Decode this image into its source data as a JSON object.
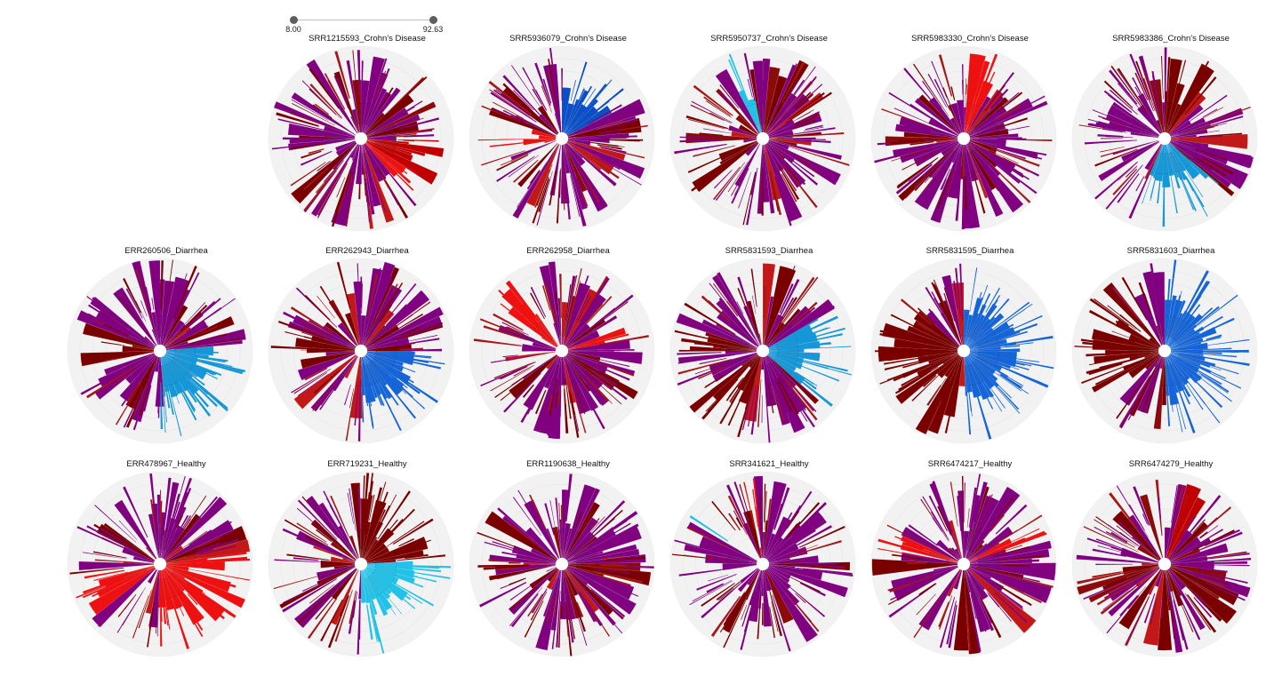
{
  "slider": {
    "min_label": "8.00",
    "max_label": "92.63",
    "min": 8.0,
    "max": 92.63
  },
  "colors": {
    "background_sector": "#f2f2f2",
    "default_sector": "#800080",
    "scale": [
      "#7a0000",
      "#c00000",
      "#ee1111",
      "#0a2fa8",
      "#1565d8",
      "#1597d8",
      "#22c2e8",
      "#8b008b"
    ]
  },
  "rows": [
    {
      "category": "Crohn's Disease",
      "samples": [
        {
          "id": "blank-slot",
          "title": ""
        },
        {
          "id": "SRR1215593",
          "title": "SRR1215593_Crohn's Disease"
        },
        {
          "id": "SRR5936079",
          "title": "SRR5936079_Crohn's Disease"
        },
        {
          "id": "SRR5950737",
          "title": "SRR5950737_Crohn's Disease"
        },
        {
          "id": "SRR5983330",
          "title": "SRR5983330_Crohn's Disease"
        },
        {
          "id": "SRR5983386",
          "title": "SRR5983386_Crohn's Disease"
        }
      ]
    },
    {
      "category": "Diarrhea",
      "samples": [
        {
          "id": "ERR260506",
          "title": "ERR260506_Diarrhea"
        },
        {
          "id": "ERR262943",
          "title": "ERR262943_Diarrhea"
        },
        {
          "id": "ERR262958",
          "title": "ERR262958_Diarrhea"
        },
        {
          "id": "SRR5831593",
          "title": "SRR5831593_Diarrhea"
        },
        {
          "id": "SRR5831595",
          "title": "SRR5831595_Diarrhea"
        },
        {
          "id": "SRR5831603",
          "title": "SRR5831603_Diarrhea"
        }
      ]
    },
    {
      "category": "Healthy",
      "samples": [
        {
          "id": "ERR478967",
          "title": "ERR478967_Healthy"
        },
        {
          "id": "ERR719231",
          "title": "ERR719231_Healthy"
        },
        {
          "id": "ERR1190638",
          "title": "ERR1190638_Healthy"
        },
        {
          "id": "SRR341621",
          "title": "SRR341621_Healthy"
        },
        {
          "id": "SRR6474217",
          "title": "SRR6474217_Healthy"
        },
        {
          "id": "SRR6474279",
          "title": "SRR6474279_Healthy"
        }
      ]
    }
  ],
  "chart_data": {
    "type": "sunburst",
    "note_values": "radial icicle (sunburst) per sample; sector colors encode abundance on the slider scale",
    "scale_range": [
      8.0,
      92.63
    ],
    "panels": [
      {
        "title": "SRR1215593_Crohn's Disease",
        "highlight": [
          {
            "start": 90,
            "end": 120,
            "color": "#c00000"
          },
          {
            "start": 120,
            "end": 140,
            "color": "#ee1111"
          }
        ],
        "blue": []
      },
      {
        "title": "SRR5936079_Crohn's Disease",
        "highlight": [
          {
            "start": 255,
            "end": 290,
            "color": "#ee1111"
          }
        ],
        "blue": [
          {
            "start": 0,
            "end": 60,
            "color": "#0a4fc8"
          }
        ]
      },
      {
        "title": "SRR5950737_Crohn's Disease",
        "highlight": [
          {
            "start": 230,
            "end": 250,
            "color": "#7a0000"
          }
        ],
        "blue": [
          {
            "start": 335,
            "end": 345,
            "color": "#22c2e8"
          }
        ]
      },
      {
        "title": "SRR5983330_Crohn's Disease",
        "highlight": [
          {
            "start": 5,
            "end": 30,
            "color": "#ee1111"
          }
        ],
        "blue": []
      },
      {
        "title": "SRR5983386_Crohn's Disease",
        "highlight": [
          {
            "start": 0,
            "end": 40,
            "color": "#7a0000"
          }
        ],
        "blue": [
          {
            "start": 130,
            "end": 200,
            "color": "#1597d8"
          },
          {
            "start": 150,
            "end": 190,
            "color": "#22c2e8"
          }
        ]
      },
      {
        "title": "ERR260506_Diarrhea",
        "highlight": [
          {
            "start": 260,
            "end": 290,
            "color": "#7a0000"
          }
        ],
        "blue": [
          {
            "start": 90,
            "end": 180,
            "color": "#1597d8"
          },
          {
            "start": 95,
            "end": 130,
            "color": "#22c2e8"
          }
        ]
      },
      {
        "title": "ERR262943_Diarrhea",
        "highlight": [
          {
            "start": 265,
            "end": 290,
            "color": "#7a0000"
          }
        ],
        "blue": [
          {
            "start": 90,
            "end": 180,
            "color": "#1565d8"
          },
          {
            "start": 95,
            "end": 140,
            "color": "#1597d8"
          }
        ]
      },
      {
        "title": "ERR262958_Diarrhea",
        "highlight": [
          {
            "start": 300,
            "end": 330,
            "color": "#ee1111"
          },
          {
            "start": 65,
            "end": 80,
            "color": "#ee1111"
          }
        ],
        "blue": []
      },
      {
        "title": "SRR5831593_Diarrhea",
        "highlight": [
          {
            "start": 200,
            "end": 240,
            "color": "#7a0000"
          },
          {
            "start": 270,
            "end": 290,
            "color": "#7a0000"
          }
        ],
        "blue": [
          {
            "start": 60,
            "end": 130,
            "color": "#1597d8"
          }
        ]
      },
      {
        "title": "SRR5831595_Diarrhea",
        "highlight": [
          {
            "start": 190,
            "end": 300,
            "color": "#7a0000"
          }
        ],
        "blue": [
          {
            "start": 0,
            "end": 180,
            "color": "#1565d8"
          },
          {
            "start": 60,
            "end": 90,
            "color": "#22c2e8"
          }
        ]
      },
      {
        "title": "SRR5831603_Diarrhea",
        "highlight": [
          {
            "start": 220,
            "end": 320,
            "color": "#7a0000"
          }
        ],
        "blue": [
          {
            "start": 0,
            "end": 180,
            "color": "#1565d8"
          },
          {
            "start": 75,
            "end": 95,
            "color": "#22c2e8"
          }
        ]
      },
      {
        "title": "ERR478967_Healthy",
        "highlight": [
          {
            "start": 80,
            "end": 180,
            "color": "#ee1111"
          },
          {
            "start": 230,
            "end": 260,
            "color": "#ee1111"
          }
        ],
        "blue": []
      },
      {
        "title": "ERR719231_Healthy",
        "highlight": [
          {
            "start": 0,
            "end": 90,
            "color": "#7a0000"
          },
          {
            "start": 0,
            "end": 45,
            "color": "#c00000"
          }
        ],
        "blue": [
          {
            "start": 90,
            "end": 180,
            "color": "#22c2e8"
          }
        ]
      },
      {
        "title": "ERR1190638_Healthy",
        "highlight": [],
        "blue": []
      },
      {
        "title": "SRR341621_Healthy",
        "highlight": [
          {
            "start": 345,
            "end": 355,
            "color": "#ee1111"
          }
        ],
        "blue": [
          {
            "start": 300,
            "end": 312,
            "color": "#22c2e8"
          }
        ]
      },
      {
        "title": "SRR6474217_Healthy",
        "highlight": [
          {
            "start": 60,
            "end": 70,
            "color": "#ee1111"
          },
          {
            "start": 280,
            "end": 295,
            "color": "#ee1111"
          }
        ],
        "blue": []
      },
      {
        "title": "SRR6474279_Healthy",
        "highlight": [
          {
            "start": 20,
            "end": 30,
            "color": "#c00000"
          }
        ],
        "blue": []
      }
    ]
  }
}
